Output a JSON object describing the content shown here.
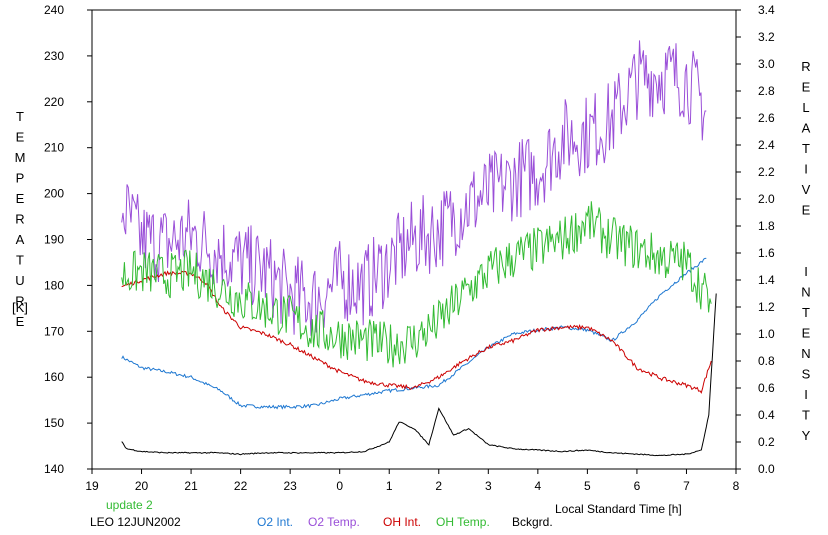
{
  "chart_data": {
    "type": "line",
    "xlabel": "Local Standard Time [h]",
    "ylabel": "TEMPERATURE",
    "ylabel_unit": "[K]",
    "y2label": "RELATIVE  INTENSITY",
    "x_ticks": [
      "19",
      "20",
      "21",
      "22",
      "23",
      "0",
      "1",
      "2",
      "3",
      "4",
      "5",
      "6",
      "7",
      "8"
    ],
    "xlim": [
      19,
      32
    ],
    "ylim": [
      140,
      240
    ],
    "y_ticks": [
      140,
      150,
      160,
      170,
      180,
      190,
      200,
      210,
      220,
      230,
      240
    ],
    "y2lim": [
      0.0,
      3.4
    ],
    "y2_ticks": [
      "0.0",
      "0.2",
      "0.4",
      "0.6",
      "0.8",
      "1.0",
      "1.2",
      "1.4",
      "1.6",
      "1.8",
      "2.0",
      "2.2",
      "2.4",
      "2.6",
      "2.8",
      "3.0",
      "3.2",
      "3.4"
    ],
    "grid": false,
    "annotations": {
      "update": "update 2",
      "station": "LEO 12JUN2002"
    },
    "legend_position": "bottom",
    "series": [
      {
        "name": "O2 Int.",
        "axis": "right",
        "color": "#1f78d1",
        "x": [
          19.6,
          20,
          20.5,
          21,
          21.3,
          21.6,
          22,
          22.5,
          23,
          23.5,
          24,
          24.5,
          25,
          25.5,
          26,
          26.5,
          27,
          27.5,
          28,
          28.5,
          29,
          29.5,
          30,
          30.5,
          31,
          31.4
        ],
        "y": [
          0.83,
          0.75,
          0.72,
          0.68,
          0.63,
          0.58,
          0.47,
          0.46,
          0.46,
          0.47,
          0.52,
          0.55,
          0.58,
          0.6,
          0.62,
          0.76,
          0.9,
          1.0,
          1.03,
          1.05,
          1.03,
          0.95,
          1.1,
          1.3,
          1.45,
          1.56
        ]
      },
      {
        "name": "O2 Temp.",
        "axis": "left",
        "color": "#9a4fd8",
        "x": [
          19.6,
          20,
          20.5,
          21,
          21.5,
          22,
          22.5,
          23,
          23.5,
          24,
          24.5,
          25,
          25.5,
          26,
          26.5,
          27,
          27.5,
          28,
          28.5,
          29,
          29.5,
          30,
          30.5,
          31,
          31.4
        ],
        "y": [
          197,
          190,
          189,
          191,
          188,
          185,
          183,
          178,
          177,
          181,
          180,
          185,
          190,
          192,
          197,
          200,
          203,
          205,
          212,
          213,
          216,
          225,
          226,
          225,
          218
        ]
      },
      {
        "name": "OH Int.",
        "axis": "right",
        "color": "#cc0000",
        "x": [
          19.6,
          20,
          20.5,
          21,
          21.3,
          21.6,
          22,
          22.5,
          23,
          23.5,
          24,
          24.5,
          25,
          25.5,
          26,
          26.5,
          27,
          27.5,
          28,
          28.5,
          29,
          29.5,
          30,
          30.5,
          31,
          31.3,
          31.5
        ],
        "y": [
          1.35,
          1.4,
          1.45,
          1.45,
          1.38,
          1.2,
          1.05,
          1.0,
          0.92,
          0.82,
          0.72,
          0.65,
          0.62,
          0.6,
          0.68,
          0.8,
          0.9,
          0.95,
          1.03,
          1.05,
          1.05,
          0.95,
          0.75,
          0.67,
          0.62,
          0.58,
          0.8
        ]
      },
      {
        "name": "OH Temp.",
        "axis": "left",
        "color": "#33bb33",
        "x": [
          19.6,
          20,
          20.5,
          21,
          21.5,
          22,
          22.5,
          23,
          23.5,
          24,
          24.5,
          25,
          25.5,
          26,
          26.5,
          27,
          27.5,
          28,
          28.5,
          29,
          29.5,
          30,
          30.5,
          31,
          31.5
        ],
        "y": [
          182,
          183,
          182,
          183,
          180,
          177,
          175,
          173,
          170,
          169,
          168,
          167,
          168,
          172,
          178,
          183,
          186,
          188,
          190,
          194,
          190,
          188,
          186,
          185,
          176
        ]
      },
      {
        "name": "Bckgrd.",
        "axis": "right",
        "color": "#000000",
        "x": [
          19.6,
          19.7,
          20,
          20.5,
          21,
          21.5,
          22,
          22.5,
          23,
          23.5,
          24,
          24.5,
          25,
          25.2,
          25.5,
          25.8,
          26,
          26.3,
          26.6,
          27,
          27.5,
          28,
          28.5,
          29,
          29.5,
          30,
          30.5,
          31,
          31.3,
          31.45,
          31.6
        ],
        "y": [
          0.2,
          0.15,
          0.13,
          0.12,
          0.12,
          0.12,
          0.11,
          0.12,
          0.12,
          0.12,
          0.12,
          0.13,
          0.2,
          0.35,
          0.3,
          0.18,
          0.45,
          0.25,
          0.3,
          0.18,
          0.15,
          0.14,
          0.13,
          0.14,
          0.12,
          0.11,
          0.1,
          0.11,
          0.14,
          0.4,
          1.3
        ]
      }
    ]
  }
}
